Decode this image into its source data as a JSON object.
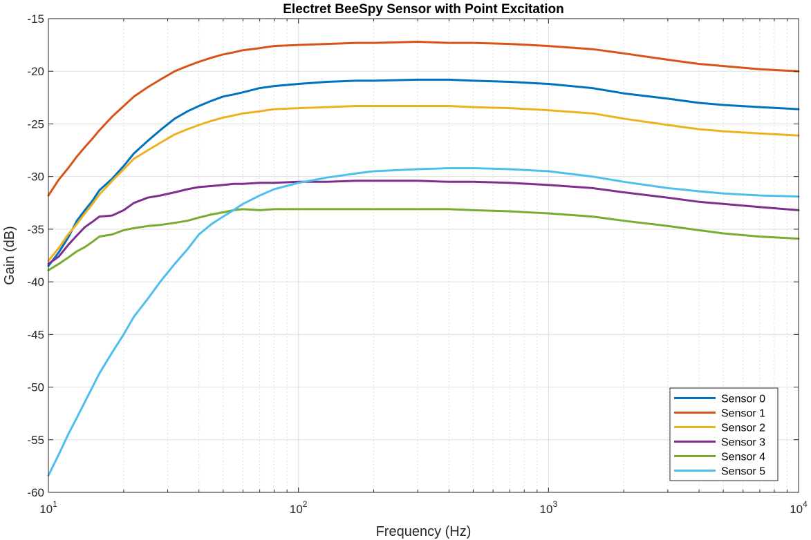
{
  "chart_data": {
    "type": "line",
    "title": "Electret BeeSpy Sensor with Point Excitation",
    "xlabel": "Frequency (Hz)",
    "ylabel": "Gain (dB)",
    "xscale": "log",
    "xlim": [
      10,
      10000
    ],
    "ylim": [
      -60,
      -15
    ],
    "grid": true,
    "legend_position": "bottom-right",
    "y_ticks": [
      -15,
      -20,
      -25,
      -30,
      -35,
      -40,
      -45,
      -50,
      -55,
      -60
    ],
    "x_ticks": [
      {
        "base": "10",
        "exp": "1"
      },
      {
        "base": "10",
        "exp": "2"
      },
      {
        "base": "10",
        "exp": "3"
      },
      {
        "base": "10",
        "exp": "4"
      }
    ],
    "series": [
      {
        "name": "Sensor 0",
        "color": "#0072BD",
        "x": [
          10,
          11,
          12,
          13,
          14,
          15,
          16,
          18,
          20,
          22,
          25,
          28,
          32,
          36,
          40,
          45,
          50,
          55,
          60,
          70,
          80,
          100,
          130,
          170,
          200,
          300,
          400,
          500,
          700,
          1000,
          1500,
          2000,
          3000,
          4000,
          5000,
          7000,
          10000
        ],
        "y": [
          -38.5,
          -37.2,
          -35.8,
          -34.2,
          -33.2,
          -32.3,
          -31.3,
          -30.2,
          -29.0,
          -27.8,
          -26.6,
          -25.6,
          -24.5,
          -23.8,
          -23.3,
          -22.8,
          -22.4,
          -22.2,
          -22.0,
          -21.6,
          -21.4,
          -21.2,
          -21.0,
          -20.9,
          -20.9,
          -20.8,
          -20.8,
          -20.9,
          -21.0,
          -21.2,
          -21.6,
          -22.1,
          -22.6,
          -23.0,
          -23.2,
          -23.4,
          -23.6
        ]
      },
      {
        "name": "Sensor 1",
        "color": "#D95319",
        "x": [
          10,
          11,
          12,
          13,
          14,
          15,
          16,
          18,
          20,
          22,
          25,
          28,
          32,
          36,
          40,
          45,
          50,
          55,
          60,
          70,
          80,
          100,
          130,
          170,
          200,
          300,
          400,
          500,
          700,
          1000,
          1500,
          2000,
          3000,
          4000,
          5000,
          7000,
          10000
        ],
        "y": [
          -31.8,
          -30.3,
          -29.2,
          -28.1,
          -27.2,
          -26.4,
          -25.6,
          -24.3,
          -23.3,
          -22.4,
          -21.5,
          -20.8,
          -20.0,
          -19.5,
          -19.1,
          -18.7,
          -18.4,
          -18.2,
          -18.0,
          -17.8,
          -17.6,
          -17.5,
          -17.4,
          -17.3,
          -17.3,
          -17.2,
          -17.3,
          -17.3,
          -17.4,
          -17.6,
          -17.9,
          -18.3,
          -18.9,
          -19.3,
          -19.5,
          -19.8,
          -20.0
        ]
      },
      {
        "name": "Sensor 2",
        "color": "#EDB120",
        "x": [
          10,
          11,
          12,
          13,
          14,
          15,
          16,
          18,
          20,
          22,
          25,
          28,
          32,
          36,
          40,
          45,
          50,
          55,
          60,
          70,
          80,
          100,
          130,
          170,
          200,
          300,
          400,
          500,
          700,
          1000,
          1500,
          2000,
          3000,
          4000,
          5000,
          7000,
          10000
        ],
        "y": [
          -38.0,
          -36.8,
          -35.5,
          -34.5,
          -33.5,
          -32.6,
          -31.7,
          -30.4,
          -29.3,
          -28.3,
          -27.5,
          -26.8,
          -26.0,
          -25.5,
          -25.1,
          -24.7,
          -24.4,
          -24.2,
          -24.0,
          -23.8,
          -23.6,
          -23.5,
          -23.4,
          -23.3,
          -23.3,
          -23.3,
          -23.3,
          -23.4,
          -23.5,
          -23.7,
          -24.0,
          -24.5,
          -25.1,
          -25.5,
          -25.7,
          -25.9,
          -26.1
        ]
      },
      {
        "name": "Sensor 3",
        "color": "#7E2F8E",
        "x": [
          10,
          11,
          12,
          13,
          14,
          15,
          16,
          18,
          20,
          22,
          25,
          28,
          32,
          36,
          40,
          45,
          50,
          55,
          60,
          70,
          80,
          100,
          130,
          170,
          200,
          300,
          400,
          500,
          700,
          1000,
          1500,
          2000,
          3000,
          4000,
          5000,
          7000,
          10000
        ],
        "y": [
          -38.3,
          -37.6,
          -36.5,
          -35.6,
          -34.8,
          -34.3,
          -33.8,
          -33.7,
          -33.2,
          -32.5,
          -32.0,
          -31.8,
          -31.5,
          -31.2,
          -31.0,
          -30.9,
          -30.8,
          -30.7,
          -30.7,
          -30.6,
          -30.6,
          -30.5,
          -30.5,
          -30.4,
          -30.4,
          -30.4,
          -30.5,
          -30.5,
          -30.6,
          -30.8,
          -31.1,
          -31.5,
          -32.0,
          -32.4,
          -32.6,
          -32.9,
          -33.2
        ]
      },
      {
        "name": "Sensor 4",
        "color": "#77AC30",
        "x": [
          10,
          11,
          12,
          13,
          14,
          15,
          16,
          18,
          20,
          22,
          25,
          28,
          32,
          36,
          40,
          45,
          50,
          55,
          60,
          70,
          80,
          100,
          130,
          170,
          200,
          300,
          400,
          500,
          700,
          1000,
          1500,
          2000,
          3000,
          4000,
          5000,
          7000,
          10000
        ],
        "y": [
          -38.9,
          -38.3,
          -37.7,
          -37.1,
          -36.7,
          -36.2,
          -35.7,
          -35.5,
          -35.1,
          -34.9,
          -34.7,
          -34.6,
          -34.4,
          -34.2,
          -33.9,
          -33.6,
          -33.4,
          -33.2,
          -33.1,
          -33.2,
          -33.1,
          -33.1,
          -33.1,
          -33.1,
          -33.1,
          -33.1,
          -33.1,
          -33.2,
          -33.3,
          -33.5,
          -33.8,
          -34.2,
          -34.7,
          -35.1,
          -35.4,
          -35.7,
          -35.9
        ]
      },
      {
        "name": "Sensor 5",
        "color": "#4DBEEE",
        "x": [
          10,
          11,
          12,
          13,
          14,
          15,
          16,
          18,
          20,
          22,
          25,
          28,
          32,
          36,
          40,
          45,
          50,
          55,
          60,
          70,
          80,
          100,
          130,
          170,
          200,
          300,
          400,
          500,
          700,
          1000,
          1500,
          2000,
          3000,
          4000,
          5000,
          7000,
          10000
        ],
        "y": [
          -58.4,
          -56.4,
          -54.5,
          -52.9,
          -51.4,
          -50.0,
          -48.7,
          -46.7,
          -45.0,
          -43.3,
          -41.6,
          -40.0,
          -38.3,
          -36.9,
          -35.5,
          -34.5,
          -33.8,
          -33.2,
          -32.6,
          -31.8,
          -31.2,
          -30.6,
          -30.1,
          -29.7,
          -29.5,
          -29.3,
          -29.2,
          -29.2,
          -29.3,
          -29.5,
          -30.0,
          -30.5,
          -31.1,
          -31.4,
          -31.6,
          -31.8,
          -31.9
        ]
      }
    ]
  }
}
